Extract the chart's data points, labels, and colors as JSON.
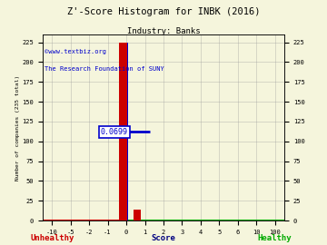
{
  "title": "Z'-Score Histogram for INBK (2016)",
  "subtitle": "Industry: Banks",
  "xlabel_score": "Score",
  "xlabel_unhealthy": "Unhealthy",
  "xlabel_healthy": "Healthy",
  "ylabel_left": "Number of companies (235 total)",
  "watermark_line1": "©www.textbiz.org",
  "watermark_line2": "The Research Foundation of SUNY",
  "company_score": 0.0699,
  "annotation_text": "0.0699",
  "ylim": [
    0,
    235
  ],
  "yticks": [
    0,
    25,
    50,
    75,
    100,
    125,
    150,
    175,
    200,
    225
  ],
  "xtick_positions": [
    -10,
    -5,
    -2,
    -1,
    0,
    1,
    2,
    3,
    4,
    5,
    6,
    10,
    100
  ],
  "xtick_labels": [
    "-10",
    "-5",
    "-2",
    "-1",
    "0",
    "1",
    "2",
    "3",
    "4",
    "5",
    "6",
    "10",
    "100"
  ],
  "main_bar_height": 225,
  "small_bar_height": 14,
  "crosshair_y": 112,
  "background_color": "#f5f5dc",
  "grid_color": "#999999",
  "bar_red": "#cc0000",
  "bar_blue": "#0000cc",
  "watermark_color": "#0000cc",
  "unhealthy_color": "#cc0000",
  "healthy_color": "#00aa00",
  "score_label_color": "#000080",
  "annotation_box_color": "#0000cc"
}
